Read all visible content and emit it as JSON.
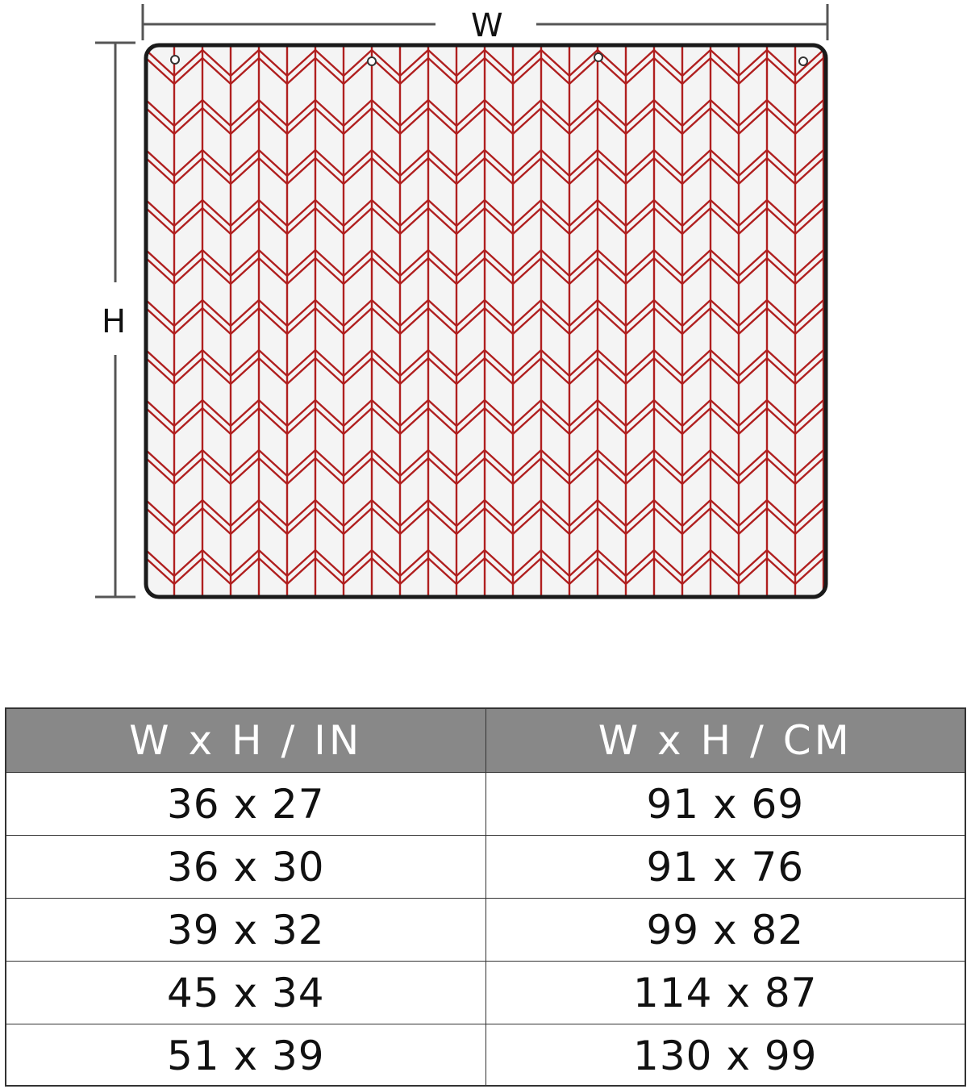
{
  "dimensions": {
    "width_label": "W",
    "height_label": "H"
  },
  "pattern": {
    "name": "red chevron",
    "line_color": "#b01f1f",
    "background_color": "#f4f4f4",
    "border_color": "#1a1a1a"
  },
  "size_table": {
    "headers": [
      "W x H / IN",
      "W x H / CM"
    ],
    "header_bg": "#888888",
    "rows": [
      {
        "in": "36 x 27",
        "cm": "91 x 69"
      },
      {
        "in": "36 x 30",
        "cm": "91 x 76"
      },
      {
        "in": "39 x 32",
        "cm": "99 x 82"
      },
      {
        "in": "45 x 34",
        "cm": "114 x 87"
      },
      {
        "in": "51 x 39",
        "cm": "130 x 99"
      }
    ]
  }
}
